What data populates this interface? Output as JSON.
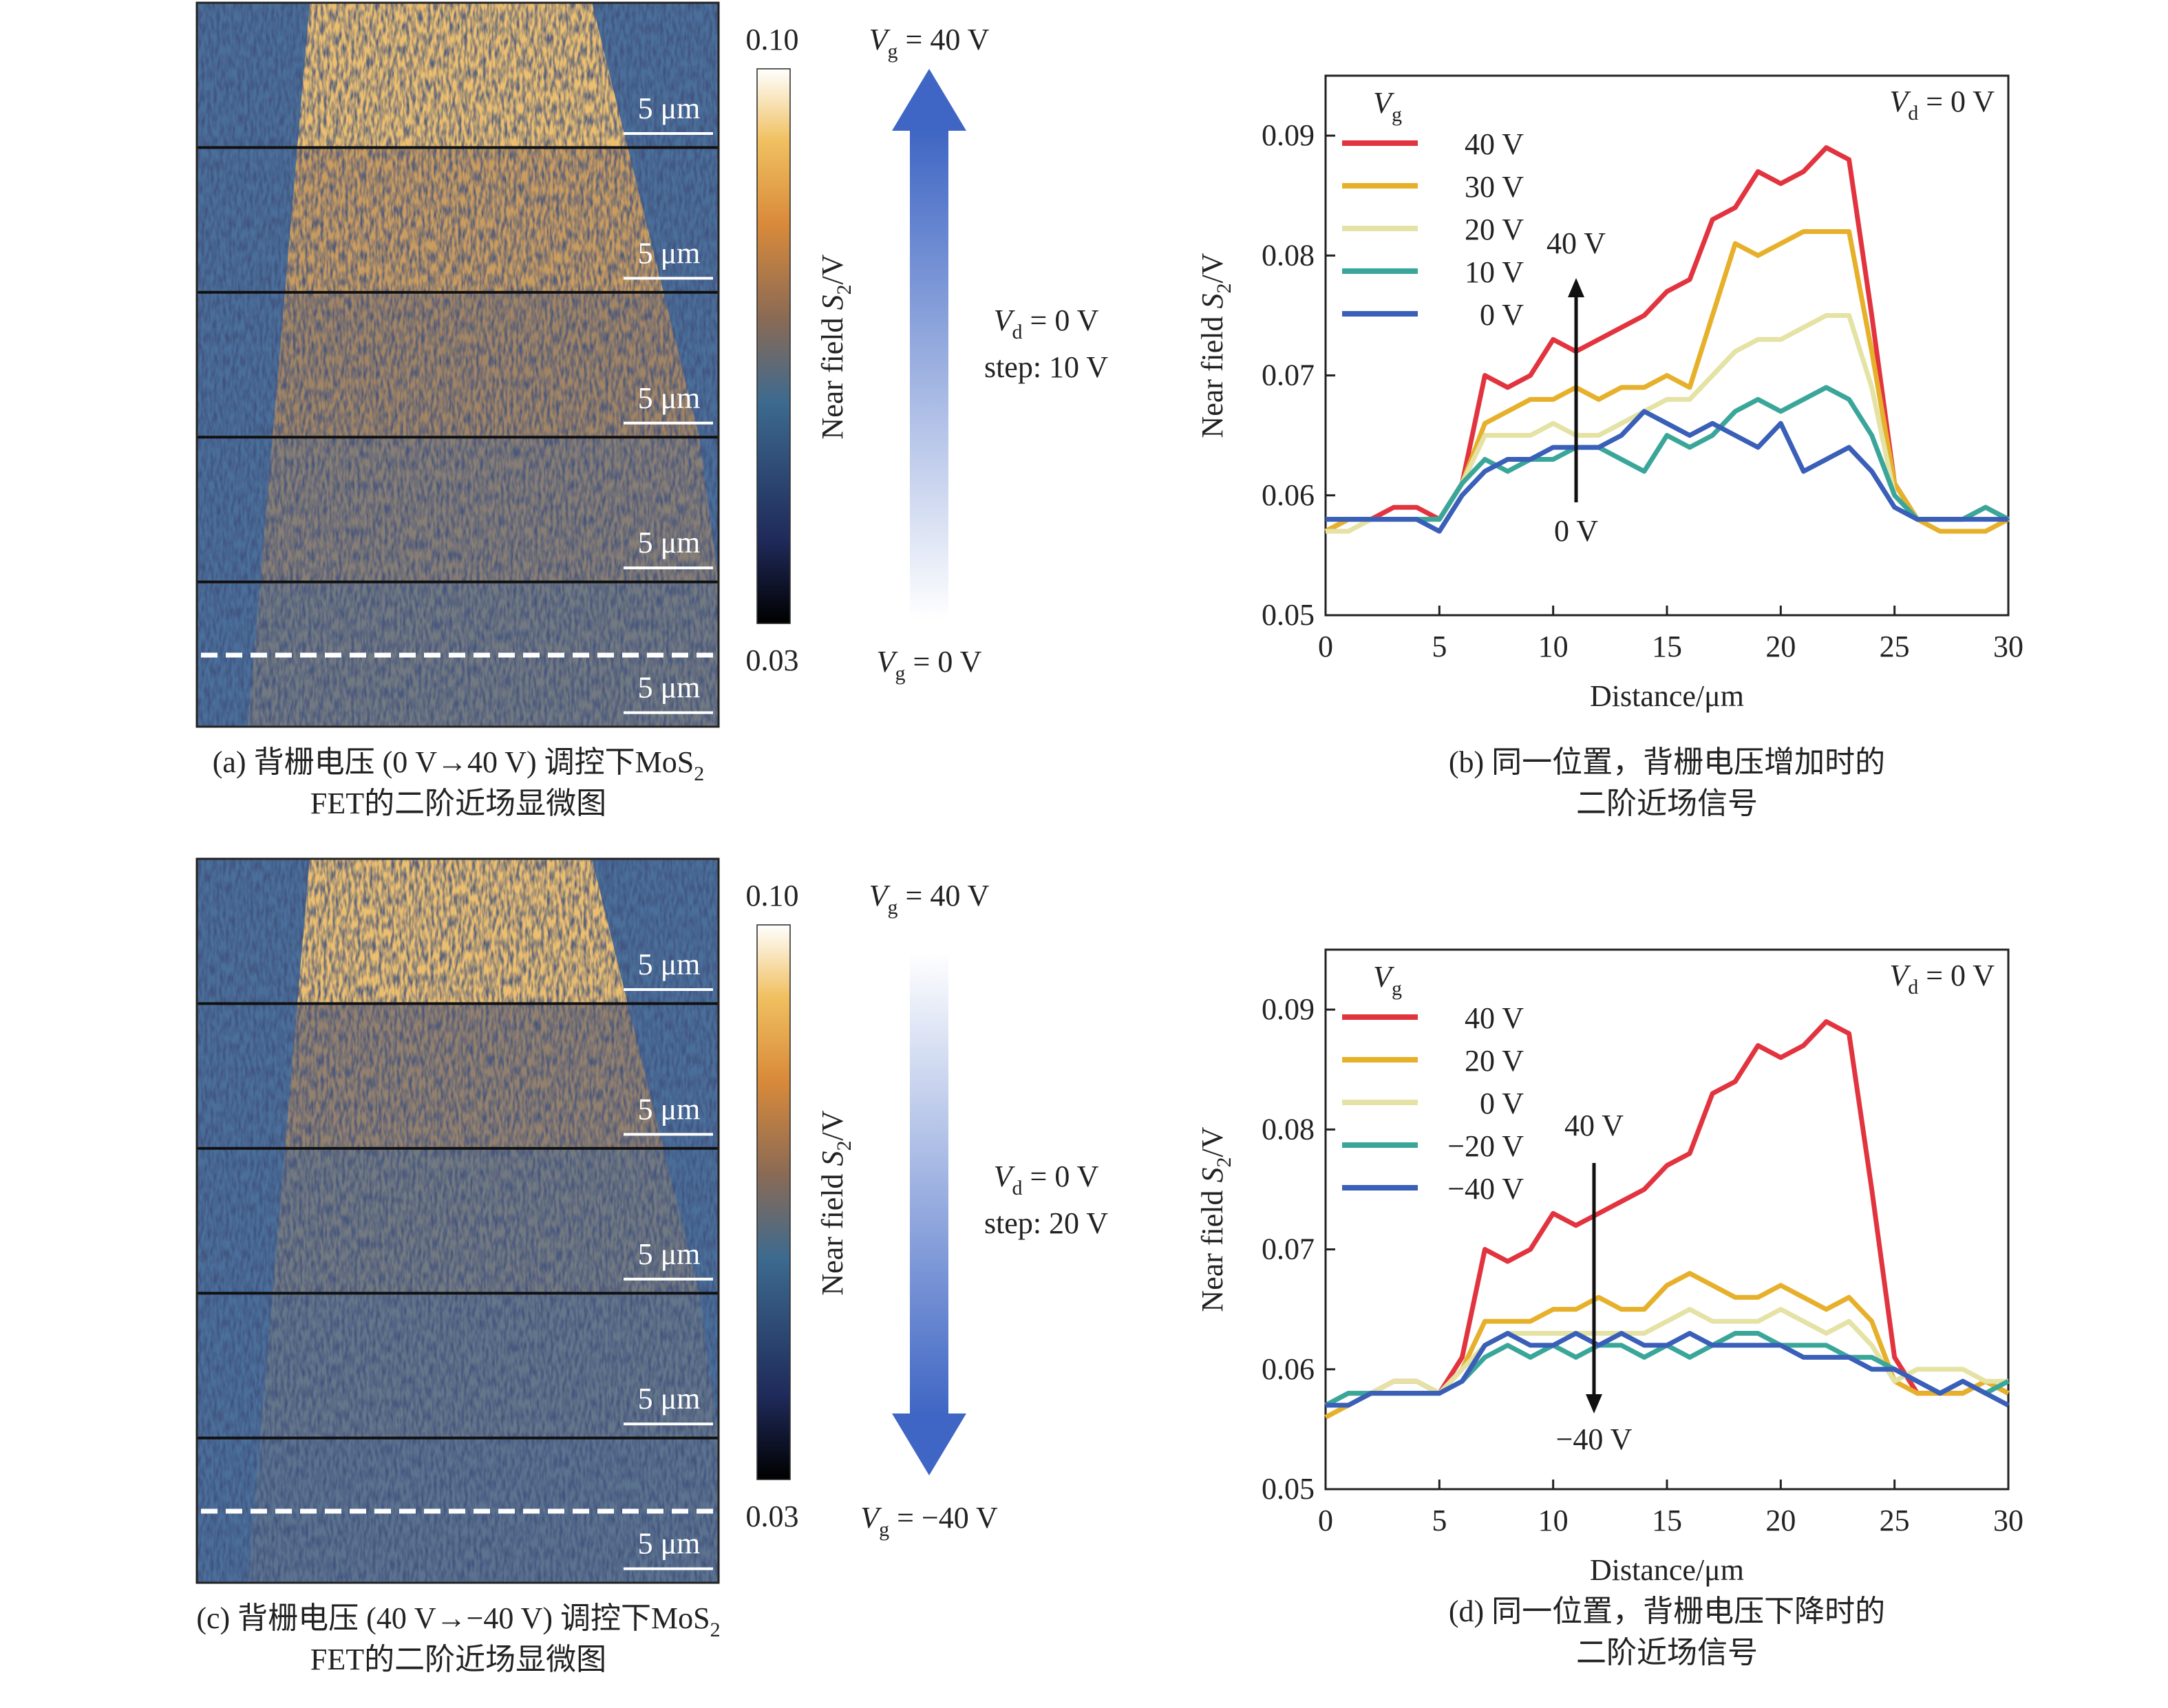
{
  "chart_data": [
    {
      "type": "image",
      "scale_bars": [
        "5 μm",
        "5 μm",
        "5 μm",
        "5 μm",
        "5 μm"
      ],
      "colorbar": {
        "ticks": [
          {
            "value": 0.1,
            "label": "0.10"
          },
          0.03
        ],
        "label": [
          "Near field ",
          "S",
          "2",
          "/V"
        ]
      },
      "top_label": [
        "V",
        "g",
        " = 40 V"
      ],
      "bottom_label": [
        "V",
        "g",
        " = 0 V"
      ],
      "condition": [
        "V",
        "d",
        " = 0 V"
      ],
      "step": "step: 10 V",
      "arrow": "up",
      "caption": [
        [
          "(a) 背栅电压 (0 V→40 V) 调控下MoS",
          "2"
        ],
        [
          "FET的二阶近场显微图"
        ]
      ]
    },
    {
      "type": "line",
      "x": [
        0,
        1,
        2,
        3,
        4,
        5,
        6,
        7,
        8,
        9,
        10,
        11,
        12,
        13,
        14,
        15,
        16,
        17,
        18,
        19,
        20,
        21,
        22,
        23,
        24,
        25,
        26,
        27,
        28,
        29,
        30
      ],
      "series": [
        {
          "name": "40 V",
          "color": "#e2343f",
          "values": [
            0.057,
            0.058,
            0.058,
            0.059,
            0.059,
            0.058,
            0.061,
            0.07,
            0.069,
            0.07,
            0.073,
            0.072,
            0.073,
            0.074,
            0.075,
            0.077,
            0.078,
            0.083,
            0.084,
            0.087,
            0.086,
            0.087,
            0.089,
            0.088,
            0.075,
            0.061,
            0.058,
            0.058,
            0.058,
            0.059,
            0.058
          ]
        },
        {
          "name": "30 V",
          "color": "#e6b02a",
          "values": [
            0.057,
            0.058,
            0.058,
            0.058,
            0.058,
            0.058,
            0.061,
            0.066,
            0.067,
            0.068,
            0.068,
            0.069,
            0.068,
            0.069,
            0.069,
            0.07,
            0.069,
            0.075,
            0.081,
            0.08,
            0.081,
            0.082,
            0.082,
            0.082,
            0.072,
            0.061,
            0.058,
            0.057,
            0.057,
            0.057,
            0.058
          ]
        },
        {
          "name": "20 V",
          "color": "#e4e2a4",
          "values": [
            0.057,
            0.057,
            0.058,
            0.058,
            0.058,
            0.058,
            0.061,
            0.065,
            0.065,
            0.065,
            0.066,
            0.065,
            0.065,
            0.066,
            0.067,
            0.068,
            0.068,
            0.07,
            0.072,
            0.073,
            0.073,
            0.074,
            0.075,
            0.075,
            0.069,
            0.06,
            0.058,
            0.058,
            0.058,
            0.059,
            0.058
          ]
        },
        {
          "name": "10 V",
          "color": "#3aa69a",
          "values": [
            0.058,
            0.058,
            0.058,
            0.058,
            0.058,
            0.058,
            0.061,
            0.063,
            0.062,
            0.063,
            0.063,
            0.064,
            0.064,
            0.063,
            0.062,
            0.065,
            0.064,
            0.065,
            0.067,
            0.068,
            0.067,
            0.068,
            0.069,
            0.068,
            0.065,
            0.06,
            0.058,
            0.058,
            0.058,
            0.059,
            0.058
          ]
        },
        {
          "name": "0 V",
          "color": "#3a5fb8",
          "values": [
            0.058,
            0.058,
            0.058,
            0.058,
            0.058,
            0.057,
            0.06,
            0.062,
            0.063,
            0.063,
            0.064,
            0.064,
            0.064,
            0.065,
            0.067,
            0.066,
            0.065,
            0.066,
            0.065,
            0.064,
            0.066,
            0.062,
            0.063,
            0.064,
            0.062,
            0.059,
            0.058,
            0.058,
            0.058,
            0.058,
            0.058
          ]
        }
      ],
      "xlim": [
        0,
        30
      ],
      "ylim": [
        0.05,
        0.095
      ],
      "xticks": [
        0,
        5,
        10,
        15,
        20,
        25,
        30
      ],
      "yticks": [
        0.05,
        0.06,
        0.07,
        0.08,
        0.09
      ],
      "xlabel": "Distance/μm",
      "ylabel": [
        "Near field ",
        "S",
        "2",
        "/V"
      ],
      "legend_title": [
        "V",
        "g"
      ],
      "legend": "upper left",
      "condition": [
        "V",
        "d",
        " = 0 V"
      ],
      "annotation": {
        "start": "0 V",
        "end": "40 V"
      },
      "caption": [
        [
          "(b) 同一位置，背栅电压增加时的"
        ],
        [
          "二阶近场信号"
        ]
      ]
    },
    {
      "type": "image",
      "scale_bars": [
        "5 μm",
        "5 μm",
        "5 μm",
        "5 μm",
        "5 μm"
      ],
      "colorbar": {
        "ticks": [
          {
            "value": 0.1,
            "label": "0.10"
          },
          0.03
        ],
        "label": [
          "Near field ",
          "S",
          "2",
          "/V"
        ]
      },
      "top_label": [
        "V",
        "g",
        " = 40 V"
      ],
      "bottom_label": [
        "V",
        "g",
        " = −40 V"
      ],
      "condition": [
        "V",
        "d",
        " = 0 V"
      ],
      "step": "step: 20 V",
      "arrow": "down",
      "caption": [
        [
          "(c) 背栅电压 (40 V→−40 V) 调控下MoS",
          "2"
        ],
        [
          "FET的二阶近场显微图"
        ]
      ]
    },
    {
      "type": "line",
      "x": [
        0,
        1,
        2,
        3,
        4,
        5,
        6,
        7,
        8,
        9,
        10,
        11,
        12,
        13,
        14,
        15,
        16,
        17,
        18,
        19,
        20,
        21,
        22,
        23,
        24,
        25,
        26,
        27,
        28,
        29,
        30
      ],
      "series": [
        {
          "name": "40 V",
          "color": "#e2343f",
          "values": [
            0.057,
            0.058,
            0.058,
            0.059,
            0.059,
            0.058,
            0.061,
            0.07,
            0.069,
            0.07,
            0.073,
            0.072,
            0.073,
            0.074,
            0.075,
            0.077,
            0.078,
            0.083,
            0.084,
            0.087,
            0.086,
            0.087,
            0.089,
            0.088,
            0.075,
            0.061,
            0.058,
            0.058,
            0.058,
            0.059,
            0.058
          ]
        },
        {
          "name": "20 V",
          "color": "#e6b02a",
          "values": [
            0.056,
            0.057,
            0.058,
            0.058,
            0.058,
            0.058,
            0.06,
            0.064,
            0.064,
            0.064,
            0.065,
            0.065,
            0.066,
            0.065,
            0.065,
            0.067,
            0.068,
            0.067,
            0.066,
            0.066,
            0.067,
            0.066,
            0.065,
            0.066,
            0.064,
            0.059,
            0.058,
            0.058,
            0.058,
            0.059,
            0.058
          ]
        },
        {
          "name": "0 V",
          "color": "#e4e2a4",
          "values": [
            0.057,
            0.058,
            0.058,
            0.059,
            0.059,
            0.058,
            0.06,
            0.062,
            0.063,
            0.063,
            0.063,
            0.063,
            0.063,
            0.063,
            0.063,
            0.064,
            0.065,
            0.064,
            0.064,
            0.064,
            0.065,
            0.064,
            0.063,
            0.064,
            0.062,
            0.059,
            0.06,
            0.06,
            0.06,
            0.059,
            0.059
          ]
        },
        {
          "name": "−20 V",
          "color": "#3aa69a",
          "values": [
            0.057,
            0.058,
            0.058,
            0.058,
            0.058,
            0.058,
            0.059,
            0.061,
            0.062,
            0.061,
            0.062,
            0.061,
            0.062,
            0.062,
            0.061,
            0.062,
            0.061,
            0.062,
            0.063,
            0.063,
            0.062,
            0.062,
            0.062,
            0.061,
            0.061,
            0.06,
            0.059,
            0.058,
            0.059,
            0.058,
            0.059
          ]
        },
        {
          "name": "−40 V",
          "color": "#3a5fb8",
          "values": [
            0.057,
            0.057,
            0.058,
            0.058,
            0.058,
            0.058,
            0.059,
            0.062,
            0.063,
            0.062,
            0.062,
            0.063,
            0.062,
            0.063,
            0.062,
            0.062,
            0.063,
            0.062,
            0.062,
            0.062,
            0.062,
            0.061,
            0.061,
            0.061,
            0.06,
            0.06,
            0.059,
            0.058,
            0.059,
            0.058,
            0.057
          ]
        }
      ],
      "xlim": [
        0,
        30
      ],
      "ylim": [
        0.05,
        0.095
      ],
      "xticks": [
        0,
        5,
        10,
        15,
        20,
        25,
        30
      ],
      "yticks": [
        0.05,
        0.06,
        0.07,
        0.08,
        0.09
      ],
      "xlabel": "Distance/μm",
      "ylabel": [
        "Near field ",
        "S",
        "2",
        "/V"
      ],
      "legend_title": [
        "V",
        "g"
      ],
      "legend": "upper left",
      "condition": [
        "V",
        "d",
        " = 0 V"
      ],
      "annotation": {
        "start": "40 V",
        "end": "−40 V"
      },
      "caption": [
        [
          "(d) 同一位置，背栅电压下降时的"
        ],
        [
          "二阶近场信号"
        ]
      ]
    }
  ]
}
